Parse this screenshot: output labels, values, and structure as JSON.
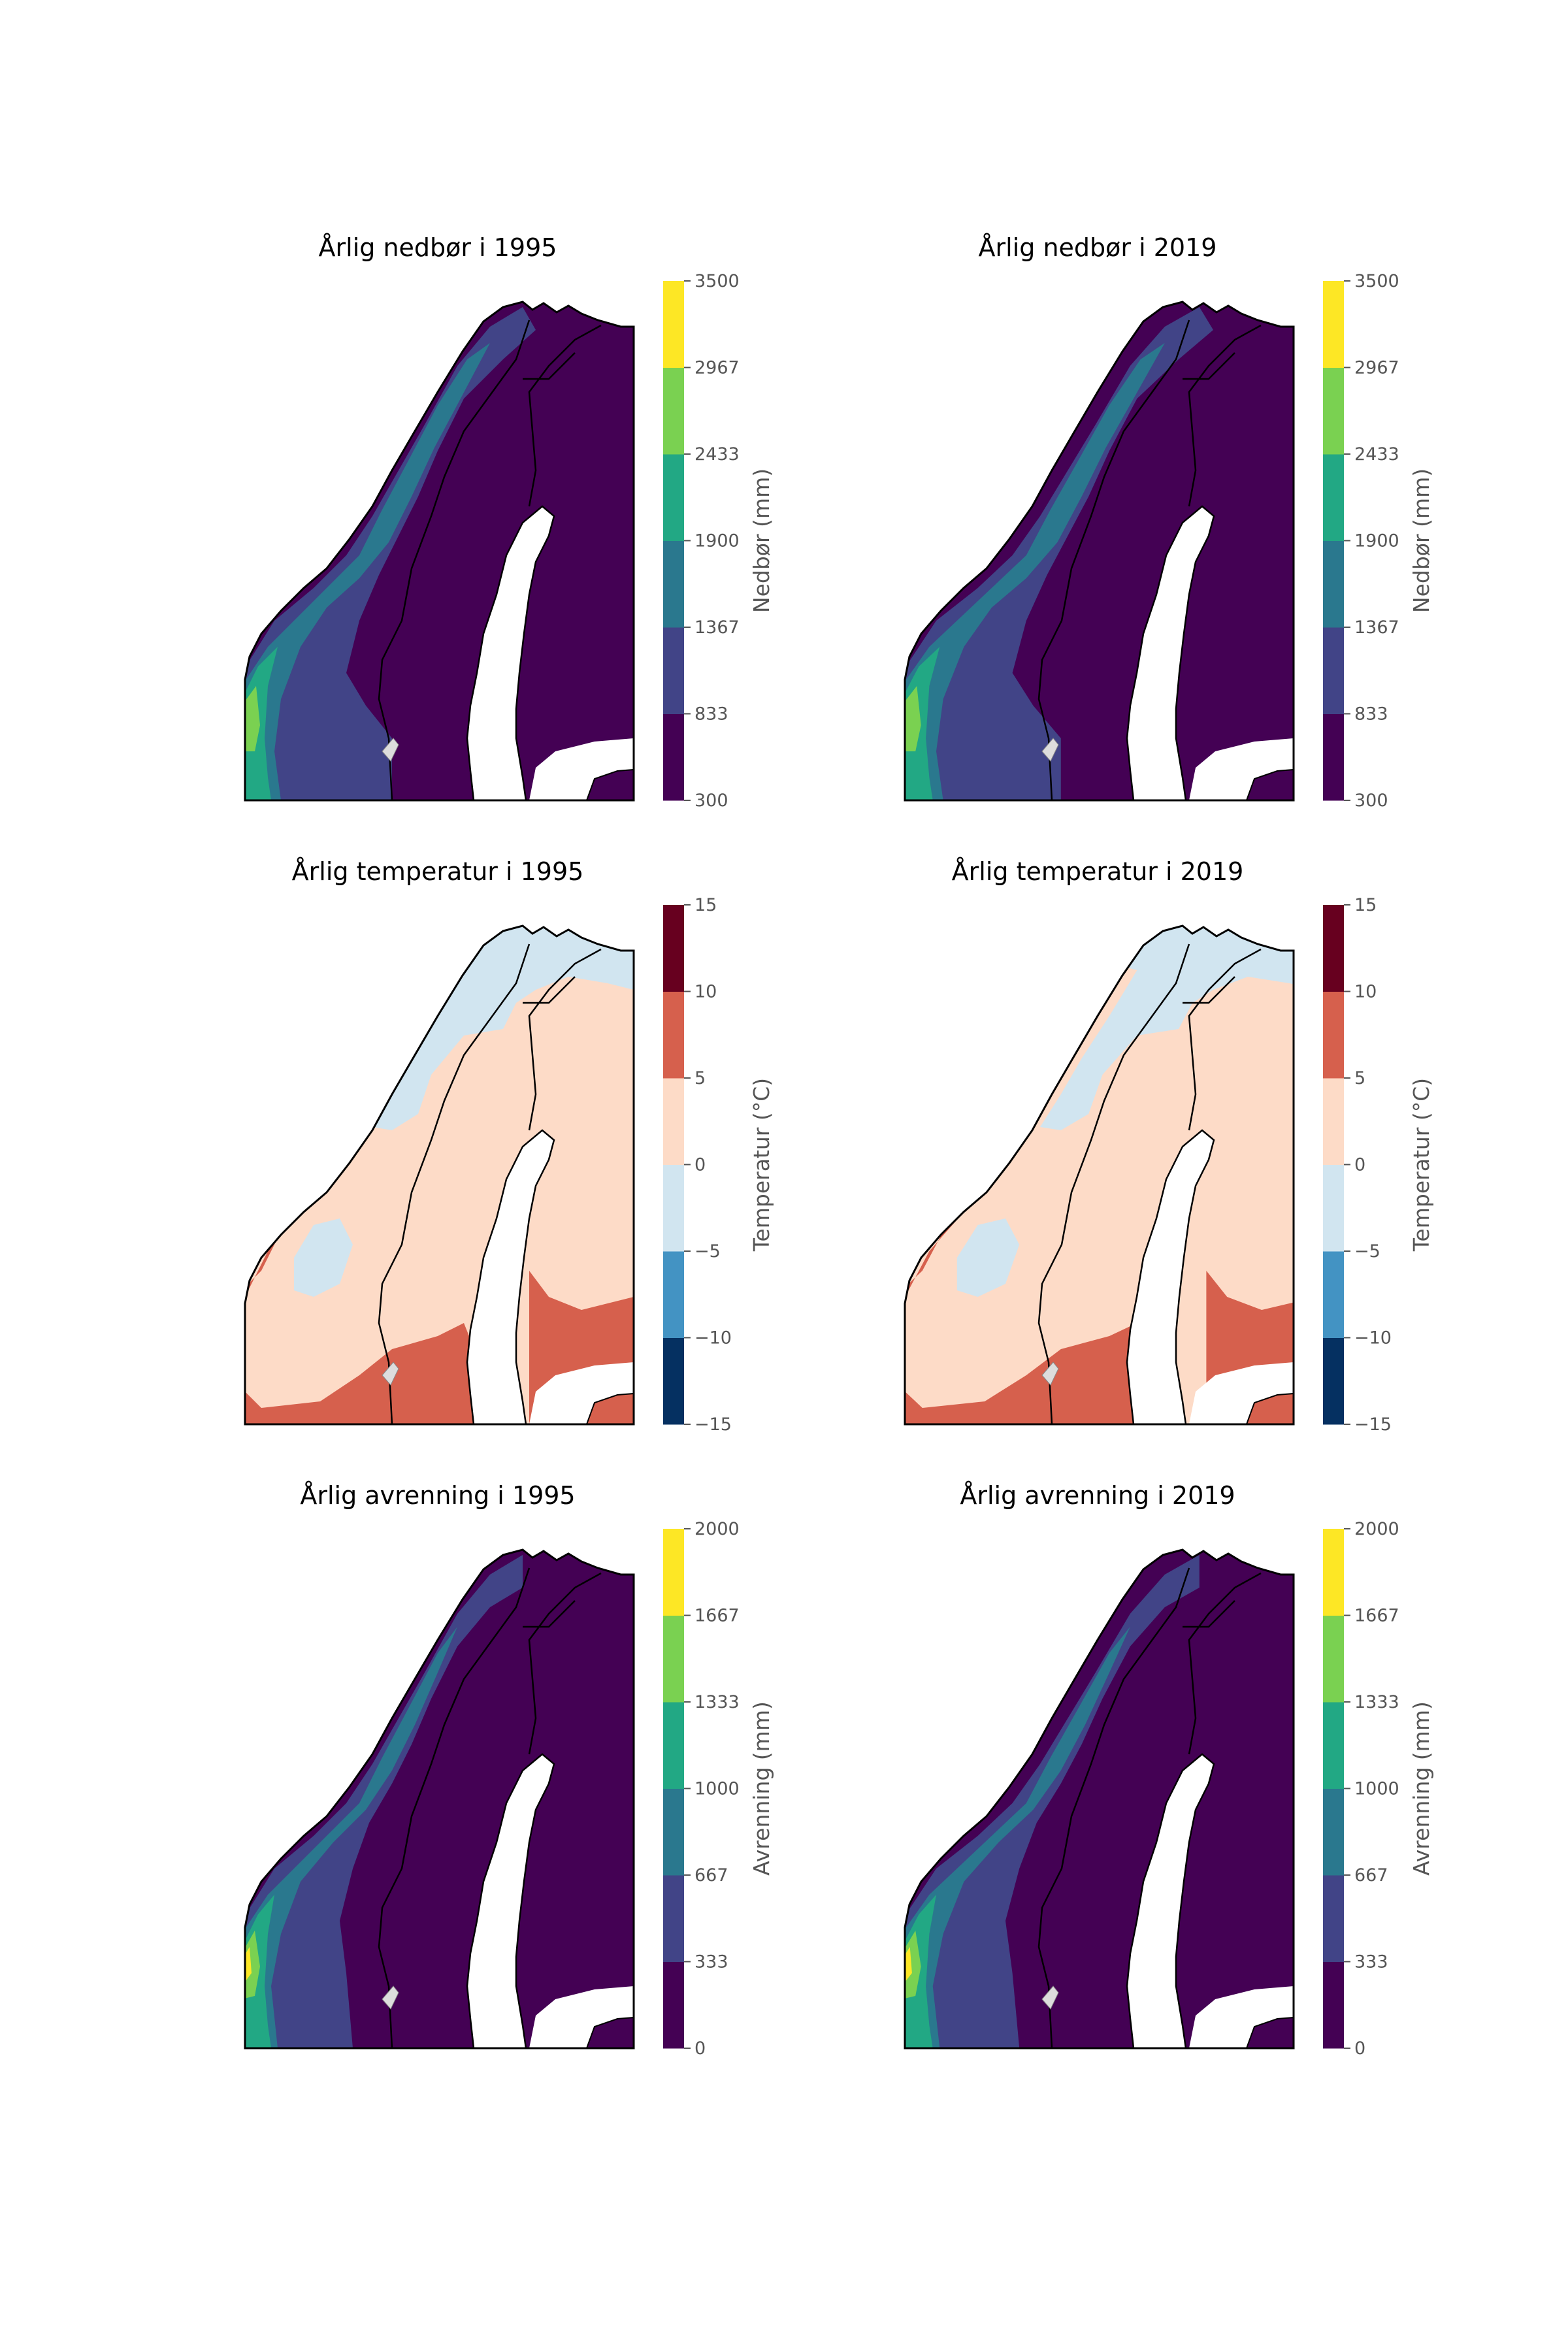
{
  "figure": {
    "panels": [
      {
        "id": "precip-1995",
        "title": "Årlig nedbør i 1995",
        "variable": "precip",
        "year": "1995",
        "colorbar": "precip"
      },
      {
        "id": "precip-2019",
        "title": "Årlig nedbør i 2019",
        "variable": "precip",
        "year": "2019",
        "colorbar": "precip"
      },
      {
        "id": "temp-1995",
        "title": "Årlig temperatur i 1995",
        "variable": "temp",
        "year": "1995",
        "colorbar": "temp"
      },
      {
        "id": "temp-2019",
        "title": "Årlig temperatur i 2019",
        "variable": "temp",
        "year": "2019",
        "colorbar": "temp"
      },
      {
        "id": "runoff-1995",
        "title": "Årlig avrenning i 1995",
        "variable": "runoff",
        "year": "1995",
        "colorbar": "runoff"
      },
      {
        "id": "runoff-2019",
        "title": "Årlig avrenning i 2019",
        "variable": "runoff",
        "year": "2019",
        "colorbar": "runoff"
      }
    ],
    "colorbars": {
      "precip": {
        "label": "Nedbør (mm)",
        "ticks": [
          "300",
          "833",
          "1367",
          "1900",
          "2433",
          "2967",
          "3500"
        ],
        "colors": [
          "#440154",
          "#414487",
          "#2a788e",
          "#22a884",
          "#7ad151",
          "#fde725"
        ]
      },
      "temp": {
        "label": "Temperatur (°C)",
        "ticks": [
          "−15",
          "−10",
          "−5",
          "0",
          "5",
          "10",
          "15"
        ],
        "colors": [
          "#053061",
          "#4393c3",
          "#d1e5f0",
          "#fddbc7",
          "#d6604d",
          "#67001f"
        ]
      },
      "runoff": {
        "label": "Avrenning (mm)",
        "ticks": [
          "0",
          "333",
          "667",
          "1000",
          "1333",
          "1667",
          "2000"
        ],
        "colors": [
          "#440154",
          "#414487",
          "#2a788e",
          "#22a884",
          "#7ad151",
          "#fde725"
        ]
      }
    },
    "coast_color": "#000000",
    "background_color": "#ffffff"
  }
}
